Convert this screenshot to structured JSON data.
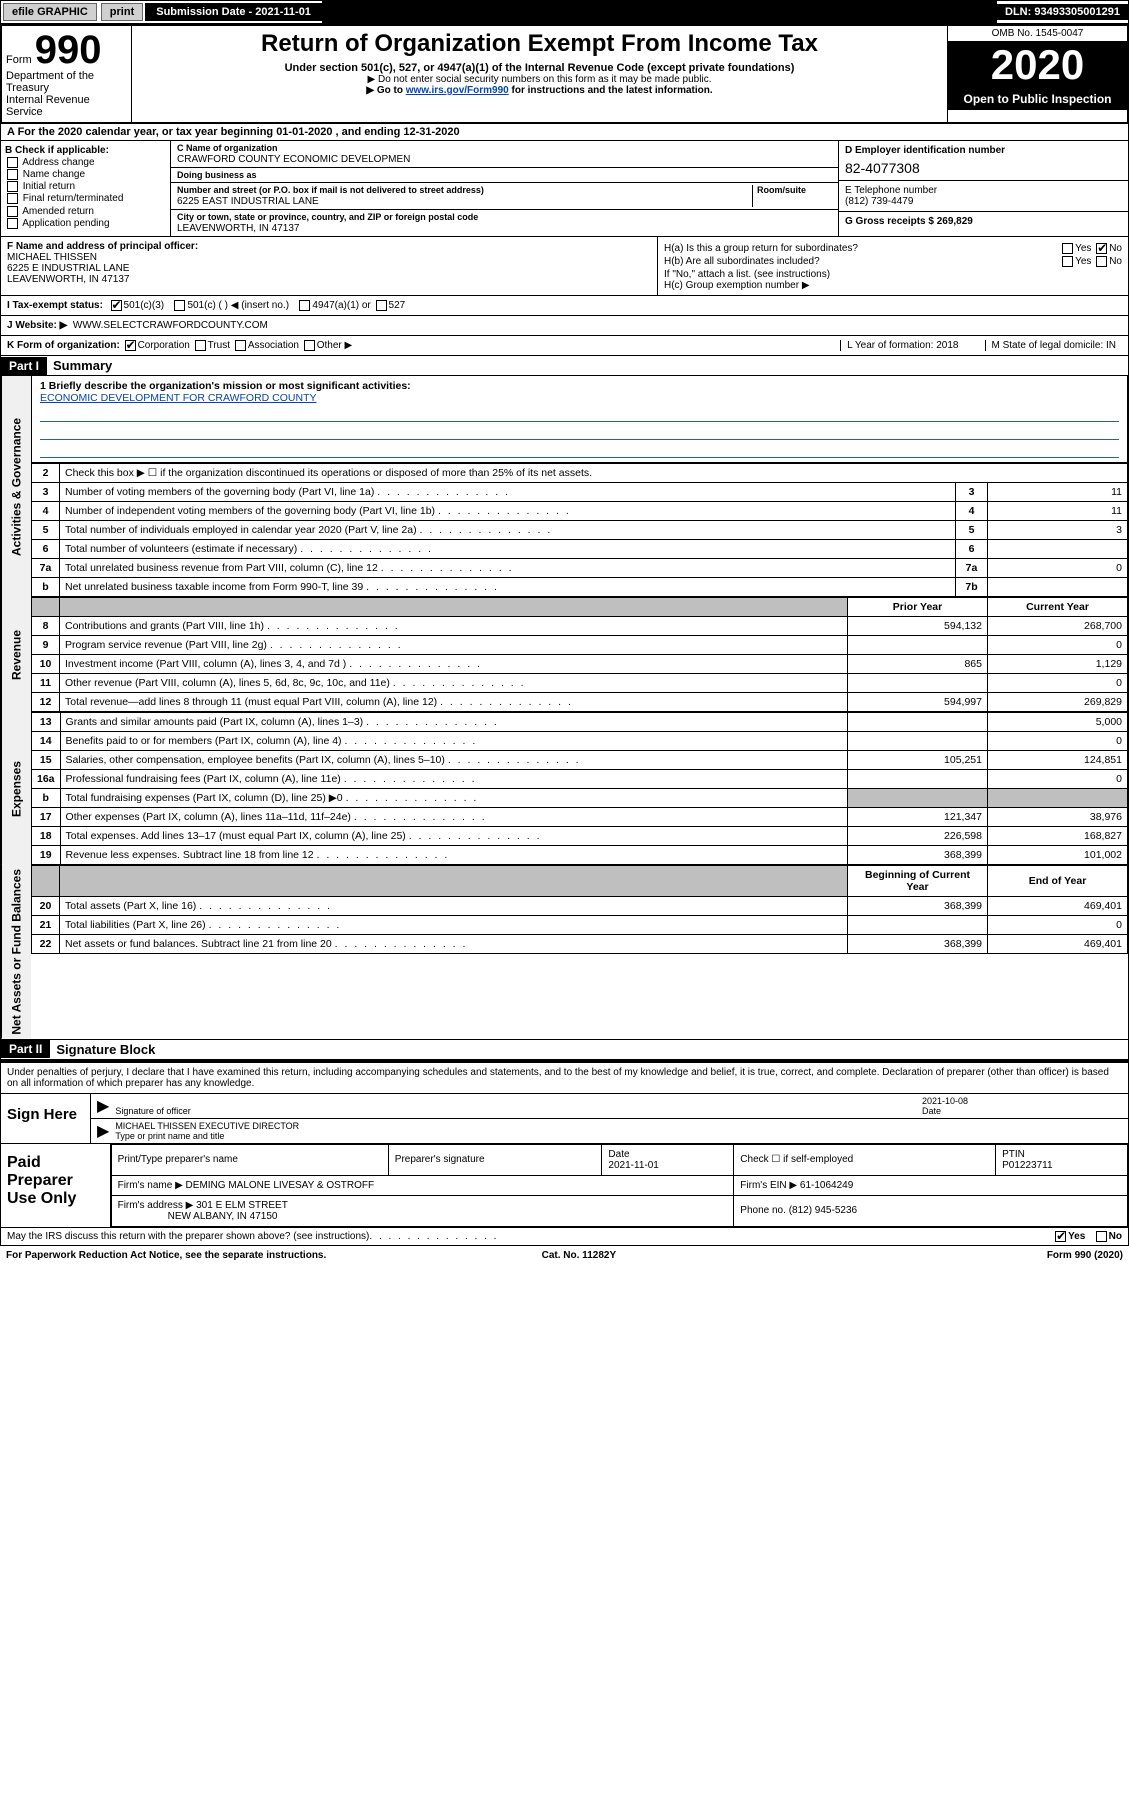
{
  "topbar": {
    "efile": "efile GRAPHIC",
    "print": "print",
    "subdate_label": "Submission Date - 2021-11-01",
    "dln": "DLN: 93493305001291"
  },
  "header": {
    "form_label": "Form",
    "form_num": "990",
    "dept": "Department of the Treasury",
    "irs": "Internal Revenue Service",
    "title": "Return of Organization Exempt From Income Tax",
    "sub1": "Under section 501(c), 527, or 4947(a)(1) of the Internal Revenue Code (except private foundations)",
    "sub2": "▶ Do not enter social security numbers on this form as it may be made public.",
    "sub3_pre": "▶ Go to ",
    "sub3_link": "www.irs.gov/Form990",
    "sub3_post": " for instructions and the latest information.",
    "omb": "OMB No. 1545-0047",
    "year": "2020",
    "open": "Open to Public Inspection"
  },
  "row_a": "A For the 2020 calendar year, or tax year beginning 01-01-2020    , and ending 12-31-2020",
  "col_b": {
    "title": "B Check if applicable:",
    "items": [
      "Address change",
      "Name change",
      "Initial return",
      "Final return/terminated",
      "Amended return",
      "Application pending"
    ]
  },
  "col_c": {
    "name_label": "C Name of organization",
    "name": "CRAWFORD COUNTY ECONOMIC DEVELOPMEN",
    "dba_label": "Doing business as",
    "addr_label": "Number and street (or P.O. box if mail is not delivered to street address)",
    "room_label": "Room/suite",
    "addr": "6225 EAST INDUSTRIAL LANE",
    "city_label": "City or town, state or province, country, and ZIP or foreign postal code",
    "city": "LEAVENWORTH, IN  47137"
  },
  "col_d": {
    "ein_label": "D Employer identification number",
    "ein": "82-4077308",
    "tel_label": "E Telephone number",
    "tel": "(812) 739-4479",
    "gross_label": "G Gross receipts $ 269,829"
  },
  "box_f": {
    "label": "F Name and address of principal officer:",
    "name": "MICHAEL THISSEN",
    "addr1": "6225 E INDUSTRIAL LANE",
    "addr2": "LEAVENWORTH, IN  47137"
  },
  "box_h": {
    "a_label": "H(a)  Is this a group return for subordinates?",
    "a_yes": "Yes",
    "a_no": "No",
    "b_label": "H(b)  Are all subordinates included?",
    "b_yes": "Yes",
    "b_no": "No",
    "note": "If \"No,\" attach a list. (see instructions)",
    "c_label": "H(c)  Group exemption number ▶"
  },
  "status": {
    "label": "I  Tax-exempt status:",
    "c3": "501(c)(3)",
    "c_other": "501(c) (  ) ◀ (insert no.)",
    "a1": "4947(a)(1) or",
    "s527": "527"
  },
  "web": {
    "label": "J  Website: ▶",
    "url": "WWW.SELECTCRAWFORDCOUNTY.COM"
  },
  "row_k": {
    "label": "K Form of organization:",
    "corp": "Corporation",
    "trust": "Trust",
    "assoc": "Association",
    "other": "Other ▶",
    "l": "L Year of formation: 2018",
    "m": "M State of legal domicile: IN"
  },
  "part1": {
    "hdr": "Part I",
    "title": "Summary",
    "line1_label": "1  Briefly describe the organization's mission or most significant activities:",
    "mission": "ECONOMIC DEVELOPMENT FOR CRAWFORD COUNTY"
  },
  "vtabs": {
    "gov": "Activities & Governance",
    "rev": "Revenue",
    "exp": "Expenses",
    "net": "Net Assets or Fund Balances"
  },
  "gov_lines": [
    {
      "n": "2",
      "d": "Check this box ▶ ☐  if the organization discontinued its operations or disposed of more than 25% of its net assets.",
      "k": "",
      "v": ""
    },
    {
      "n": "3",
      "d": "Number of voting members of the governing body (Part VI, line 1a)",
      "k": "3",
      "v": "11"
    },
    {
      "n": "4",
      "d": "Number of independent voting members of the governing body (Part VI, line 1b)",
      "k": "4",
      "v": "11"
    },
    {
      "n": "5",
      "d": "Total number of individuals employed in calendar year 2020 (Part V, line 2a)",
      "k": "5",
      "v": "3"
    },
    {
      "n": "6",
      "d": "Total number of volunteers (estimate if necessary)",
      "k": "6",
      "v": ""
    },
    {
      "n": "7a",
      "d": "Total unrelated business revenue from Part VIII, column (C), line 12",
      "k": "7a",
      "v": "0"
    },
    {
      "n": "b",
      "d": "Net unrelated business taxable income from Form 990-T, line 39",
      "k": "7b",
      "v": ""
    }
  ],
  "col_headers": {
    "prior": "Prior Year",
    "curr": "Current Year"
  },
  "rev_lines": [
    {
      "n": "8",
      "d": "Contributions and grants (Part VIII, line 1h)",
      "p": "594,132",
      "c": "268,700"
    },
    {
      "n": "9",
      "d": "Program service revenue (Part VIII, line 2g)",
      "p": "",
      "c": "0"
    },
    {
      "n": "10",
      "d": "Investment income (Part VIII, column (A), lines 3, 4, and 7d )",
      "p": "865",
      "c": "1,129"
    },
    {
      "n": "11",
      "d": "Other revenue (Part VIII, column (A), lines 5, 6d, 8c, 9c, 10c, and 11e)",
      "p": "",
      "c": "0"
    },
    {
      "n": "12",
      "d": "Total revenue—add lines 8 through 11 (must equal Part VIII, column (A), line 12)",
      "p": "594,997",
      "c": "269,829"
    }
  ],
  "exp_lines": [
    {
      "n": "13",
      "d": "Grants and similar amounts paid (Part IX, column (A), lines 1–3)",
      "p": "",
      "c": "5,000"
    },
    {
      "n": "14",
      "d": "Benefits paid to or for members (Part IX, column (A), line 4)",
      "p": "",
      "c": "0"
    },
    {
      "n": "15",
      "d": "Salaries, other compensation, employee benefits (Part IX, column (A), lines 5–10)",
      "p": "105,251",
      "c": "124,851"
    },
    {
      "n": "16a",
      "d": "Professional fundraising fees (Part IX, column (A), line 11e)",
      "p": "",
      "c": "0"
    },
    {
      "n": "b",
      "d": "Total fundraising expenses (Part IX, column (D), line 25) ▶0",
      "p": "SHADE",
      "c": "SHADE"
    },
    {
      "n": "17",
      "d": "Other expenses (Part IX, column (A), lines 11a–11d, 11f–24e)",
      "p": "121,347",
      "c": "38,976"
    },
    {
      "n": "18",
      "d": "Total expenses. Add lines 13–17 (must equal Part IX, column (A), line 25)",
      "p": "226,598",
      "c": "168,827"
    },
    {
      "n": "19",
      "d": "Revenue less expenses. Subtract line 18 from line 12",
      "p": "368,399",
      "c": "101,002"
    }
  ],
  "col_headers2": {
    "prior": "Beginning of Current Year",
    "curr": "End of Year"
  },
  "net_lines": [
    {
      "n": "20",
      "d": "Total assets (Part X, line 16)",
      "p": "368,399",
      "c": "469,401"
    },
    {
      "n": "21",
      "d": "Total liabilities (Part X, line 26)",
      "p": "",
      "c": "0"
    },
    {
      "n": "22",
      "d": "Net assets or fund balances. Subtract line 21 from line 20",
      "p": "368,399",
      "c": "469,401"
    }
  ],
  "part2": {
    "hdr": "Part II",
    "title": "Signature Block",
    "decl": "Under penalties of perjury, I declare that I have examined this return, including accompanying schedules and statements, and to the best of my knowledge and belief, it is true, correct, and complete. Declaration of preparer (other than officer) is based on all information of which preparer has any knowledge."
  },
  "sign": {
    "here": "Sign Here",
    "sig_label": "Signature of officer",
    "date_label": "Date",
    "date": "2021-10-08",
    "name": "MICHAEL THISSEN  EXECUTIVE DIRECTOR",
    "name_label": "Type or print name and title"
  },
  "prep": {
    "left": "Paid Preparer Use Only",
    "h_name": "Print/Type preparer's name",
    "h_sig": "Preparer's signature",
    "h_date": "Date",
    "date": "2021-11-01",
    "h_check": "Check ☐ if self-employed",
    "h_ptin": "PTIN",
    "ptin": "P01223711",
    "firm_label": "Firm's name    ▶",
    "firm": "DEMING MALONE LIVESAY & OSTROFF",
    "ein_label": "Firm's EIN ▶",
    "ein": "61-1064249",
    "addr_label": "Firm's address ▶",
    "addr1": "301 E ELM STREET",
    "addr2": "NEW ALBANY, IN  47150",
    "phone_label": "Phone no.",
    "phone": "(812) 945-5236"
  },
  "discuss": {
    "q": "May the IRS discuss this return with the preparer shown above? (see instructions)",
    "yes": "Yes",
    "no": "No"
  },
  "footer": {
    "pra": "For Paperwork Reduction Act Notice, see the separate instructions.",
    "cat": "Cat. No. 11282Y",
    "form": "Form 990 (2020)"
  }
}
